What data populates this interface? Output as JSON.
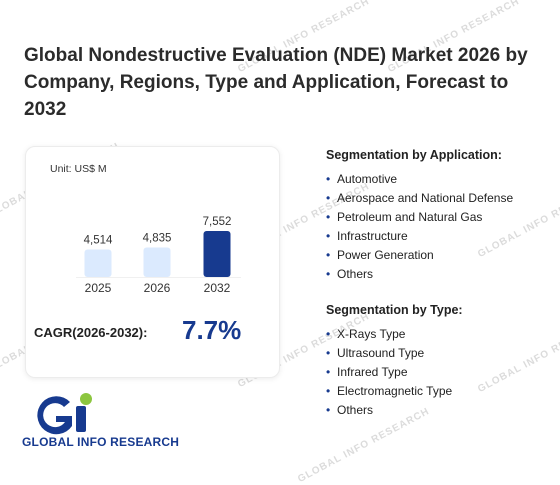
{
  "title": "Global Nondestructive Evaluation (NDE) Market 2026 by Company, Regions, Type and Application, Forecast to 2032",
  "watermark_text": "GLOBAL INFO RESEARCH",
  "chart_data": {
    "type": "bar",
    "unit_label": "Unit: US$ M",
    "categories": [
      "2025",
      "2026",
      "2032"
    ],
    "values": [
      4514,
      4835,
      7552
    ],
    "value_labels": [
      "4,514",
      "4,835",
      "7,552"
    ],
    "ylim": [
      0,
      8000
    ],
    "colors": [
      "#dbeafe",
      "#dbeafe",
      "#173a8f"
    ],
    "grid": false,
    "legend": "none"
  },
  "cagr": {
    "label": "CAGR(2026-2032):",
    "value": "7.7%"
  },
  "segmentation_application": {
    "title": "Segmentation by Application:",
    "items": [
      "Automotive",
      "Aerospace and National Defense",
      "Petroleum and Natural Gas",
      "Infrastructure",
      "Power Generation",
      "Others"
    ]
  },
  "segmentation_type": {
    "title": "Segmentation by Type:",
    "items": [
      "X-Rays Type",
      "Ultrasound Type",
      "Infrared Type",
      "Electromagnetic Type",
      "Others"
    ]
  },
  "logo": {
    "text": "GLOBAL INFO RESEARCH",
    "colors": [
      "#173a8f",
      "#8cc63f"
    ]
  }
}
